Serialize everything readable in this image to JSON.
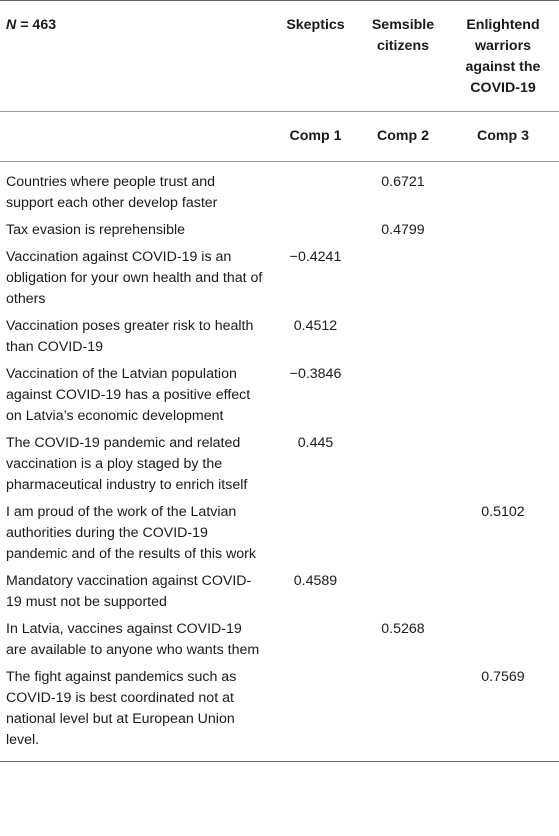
{
  "table": {
    "n_label": "N",
    "n_value": "= 463",
    "groups": [
      "Skeptics",
      "Semsible citizens",
      "Enlightend warriors against the COVID-19"
    ],
    "components": [
      "Comp 1",
      "Comp 2",
      "Comp 3"
    ],
    "rows": [
      {
        "label": "Countries where people trust and support each other develop faster",
        "c1": "",
        "c2": "0.6721",
        "c3": ""
      },
      {
        "label": "Tax evasion is reprehensible",
        "c1": "",
        "c2": "0.4799",
        "c3": ""
      },
      {
        "label": "Vaccination against COVID-19 is an obligation for your own health and that of others",
        "c1": "−0.4241",
        "c2": "",
        "c3": ""
      },
      {
        "label": "Vaccination poses greater risk to health than COVID-19",
        "c1": "0.4512",
        "c2": "",
        "c3": ""
      },
      {
        "label": "Vaccination of the Latvian population against COVID-19 has a positive effect on Latvia’s economic development",
        "c1": "−0.3846",
        "c2": "",
        "c3": ""
      },
      {
        "label": "The COVID-19 pandemic and related vaccination is a ploy staged by the pharmaceutical industry to enrich itself",
        "c1": "0.445",
        "c2": "",
        "c3": ""
      },
      {
        "label": "I am proud of the work of the Latvian authorities during the COVID-19 pandemic and of the results of this work",
        "c1": "",
        "c2": "",
        "c3": "0.5102"
      },
      {
        "label": "Mandatory vaccination against COVID-19 must not be supported",
        "c1": "0.4589",
        "c2": "",
        "c3": ""
      },
      {
        "label": "In Latvia, vaccines against COVID-19 are available to anyone who wants them",
        "c1": "",
        "c2": "0.5268",
        "c3": ""
      },
      {
        "label": "The fight against pandemics such as COVID-19 is best coordinated not at national level but at European Union level.",
        "c1": "",
        "c2": "",
        "c3": "0.7569"
      }
    ]
  }
}
